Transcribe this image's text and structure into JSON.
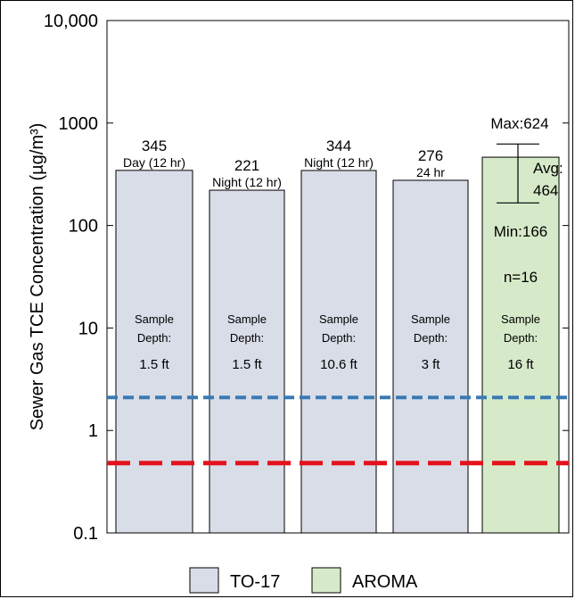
{
  "chart_data": {
    "type": "bar",
    "ylabel": "Sewer Gas TCE Concentration (µg/m³)",
    "yscale": "log",
    "ylim": [
      0.1,
      10000
    ],
    "yticks": [
      "0.1",
      "1",
      "10",
      "100",
      "1000",
      "10,000"
    ],
    "bars": [
      {
        "value": 345,
        "value_label": "345",
        "period": "Day (12 hr)",
        "depth_label": "Sample Depth:",
        "depth": "1.5 ft",
        "method": "TO-17"
      },
      {
        "value": 221,
        "value_label": "221",
        "period": "Night (12 hr)",
        "depth_label": "Sample Depth:",
        "depth": "1.5 ft",
        "method": "TO-17"
      },
      {
        "value": 344,
        "value_label": "344",
        "period": "Night (12 hr)",
        "depth_label": "Sample Depth:",
        "depth": "10.6 ft",
        "method": "TO-17"
      },
      {
        "value": 276,
        "value_label": "276",
        "period": "24 hr",
        "depth_label": "Sample Depth:",
        "depth": "3 ft",
        "method": "TO-17"
      },
      {
        "value": 464,
        "method": "AROMA",
        "depth_label": "Sample Depth:",
        "depth": "16 ft",
        "max": 624,
        "min": 166,
        "max_label": "Max:624",
        "avg_label": "Avg:",
        "avg_value": "464",
        "min_label": "Min:166",
        "n_label": "n=16"
      }
    ],
    "reference_lines": [
      {
        "value": 2.1,
        "color": "#3a7ab5",
        "style": "short-dash"
      },
      {
        "value": 0.48,
        "color": "#e3121b",
        "style": "long-dash"
      }
    ],
    "legend": {
      "position": "bottom",
      "entries": [
        {
          "label": "TO-17",
          "color": "#d9dde8"
        },
        {
          "label": "AROMA",
          "color": "#d6eac9"
        }
      ]
    }
  }
}
